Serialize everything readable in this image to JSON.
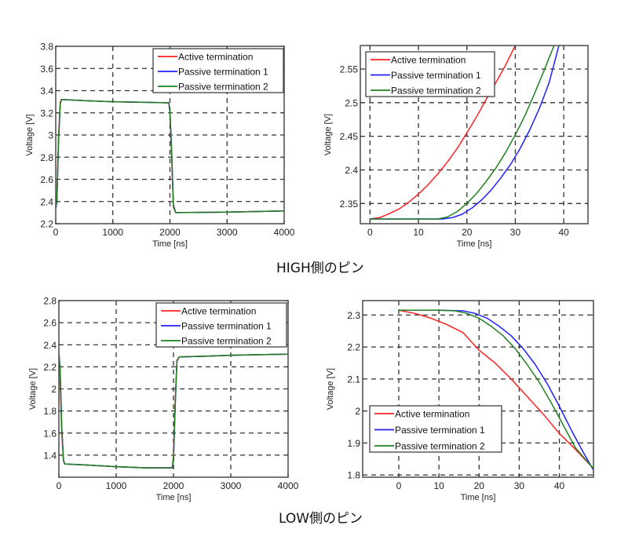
{
  "captions": {
    "high": "HIGH側のピン",
    "low": "LOW側のピン"
  },
  "colors": {
    "active": "#ff2020",
    "passive1": "#2020ff",
    "passive2": "#208020",
    "grid": "#333333",
    "frame": "#555555"
  },
  "chart_data": [
    {
      "type": "line",
      "id": "high-full",
      "xlabel": "Time [ns]",
      "ylabel": "Voltage [V]",
      "xlim": [
        0,
        4000
      ],
      "ylim": [
        2.2,
        3.8
      ],
      "xticks": [
        0,
        1000,
        2000,
        3000,
        4000
      ],
      "xtick_labels": [
        "0",
        "1000",
        "2000",
        "3000",
        "4000"
      ],
      "yticks": [
        2.2,
        2.4,
        2.6,
        2.8,
        3.0,
        3.2,
        3.4,
        3.6,
        3.8
      ],
      "ytick_labels": [
        "2.2",
        "2.4",
        "2.6",
        "2.8",
        "3",
        "3.2",
        "3.4",
        "3.6",
        "3.8"
      ],
      "grid": true,
      "legend_position": "top-right",
      "legend": [
        "Active termination",
        "Passive termination 1",
        "Passive termination 2"
      ],
      "series": [
        {
          "name": "Active termination",
          "color_key": "active",
          "x": [
            0,
            20,
            50,
            80,
            100,
            500,
            1000,
            1500,
            1980,
            2000,
            2030,
            2060,
            2100,
            2500,
            3000,
            3500,
            4000
          ],
          "y": [
            2.33,
            2.45,
            3.0,
            3.3,
            3.32,
            3.31,
            3.3,
            3.295,
            3.29,
            3.2,
            2.8,
            2.35,
            2.3,
            2.302,
            2.305,
            2.31,
            2.315
          ]
        },
        {
          "name": "Passive termination 1",
          "color_key": "passive1",
          "x": [
            0,
            20,
            50,
            80,
            100,
            500,
            1000,
            1500,
            1980,
            2000,
            2030,
            2060,
            2100,
            2500,
            3000,
            3500,
            4000
          ],
          "y": [
            2.33,
            2.4,
            2.95,
            3.28,
            3.32,
            3.31,
            3.3,
            3.295,
            3.29,
            3.22,
            2.85,
            2.37,
            2.3,
            2.302,
            2.305,
            2.31,
            2.315
          ]
        },
        {
          "name": "Passive termination 2",
          "color_key": "passive2",
          "x": [
            0,
            20,
            50,
            80,
            100,
            500,
            1000,
            1500,
            1980,
            2000,
            2030,
            2060,
            2100,
            2500,
            3000,
            3500,
            4000
          ],
          "y": [
            2.33,
            2.41,
            2.96,
            3.29,
            3.32,
            3.31,
            3.3,
            3.295,
            3.29,
            3.21,
            2.83,
            2.36,
            2.3,
            2.302,
            2.305,
            2.31,
            2.315
          ]
        }
      ]
    },
    {
      "type": "line",
      "id": "high-zoom",
      "xlabel": "Time [ns]",
      "ylabel": "Voltage [V]",
      "xlim": [
        -2,
        45
      ],
      "ylim": [
        2.32,
        2.585
      ],
      "xticks": [
        0,
        10,
        20,
        30,
        40
      ],
      "xtick_labels": [
        "0",
        "10",
        "20",
        "30",
        "40"
      ],
      "yticks": [
        2.35,
        2.4,
        2.45,
        2.5,
        2.55
      ],
      "ytick_labels": [
        "2.35",
        "2.4",
        "2.45",
        "2.5",
        "2.55"
      ],
      "grid": true,
      "legend_position": "top-left",
      "legend": [
        "Active termination",
        "Passive termination 1",
        "Passive termination 2"
      ],
      "series": [
        {
          "name": "Active termination",
          "color_key": "active",
          "x": [
            0,
            2,
            4,
            6,
            8,
            10,
            12,
            14,
            16,
            18,
            20,
            22,
            24,
            26,
            28,
            30
          ],
          "y": [
            2.327,
            2.329,
            2.335,
            2.342,
            2.352,
            2.364,
            2.378,
            2.394,
            2.412,
            2.432,
            2.455,
            2.479,
            2.505,
            2.53,
            2.556,
            2.585
          ]
        },
        {
          "name": "Passive termination 1",
          "color_key": "passive1",
          "x": [
            0,
            10,
            15,
            17,
            19,
            21,
            23,
            25,
            27,
            29,
            31,
            33,
            35,
            37,
            39
          ],
          "y": [
            2.327,
            2.327,
            2.327,
            2.329,
            2.334,
            2.343,
            2.355,
            2.37,
            2.388,
            2.408,
            2.432,
            2.46,
            2.492,
            2.53,
            2.585
          ]
        },
        {
          "name": "Passive termination 2",
          "color_key": "passive2",
          "x": [
            0,
            10,
            14,
            16,
            18,
            20,
            22,
            24,
            26,
            28,
            30,
            32,
            34,
            36,
            38
          ],
          "y": [
            2.327,
            2.327,
            2.327,
            2.33,
            2.338,
            2.35,
            2.365,
            2.383,
            2.403,
            2.426,
            2.452,
            2.481,
            2.514,
            2.549,
            2.585
          ]
        }
      ]
    },
    {
      "type": "line",
      "id": "low-full",
      "xlabel": "Time [ns]",
      "ylabel": "Voltage [V]",
      "xlim": [
        0,
        4000
      ],
      "ylim": [
        1.2,
        2.8
      ],
      "xticks": [
        0,
        1000,
        2000,
        3000,
        4000
      ],
      "xtick_labels": [
        "0",
        "1000",
        "2000",
        "3000",
        "4000"
      ],
      "yticks": [
        1.4,
        1.6,
        1.8,
        2.0,
        2.2,
        2.4,
        2.6,
        2.8
      ],
      "ytick_labels": [
        "1.4",
        "1.6",
        "1.8",
        "2",
        "2.2",
        "2.4",
        "2.6",
        "2.8"
      ],
      "grid": true,
      "legend_position": "top-right",
      "legend": [
        "Active termination",
        "Passive termination 1",
        "Passive termination 2"
      ],
      "series": [
        {
          "name": "Active termination",
          "color_key": "active",
          "x": [
            0,
            20,
            50,
            80,
            100,
            500,
            1000,
            1500,
            1980,
            2000,
            2030,
            2060,
            2100,
            2500,
            3000,
            3500,
            4000
          ],
          "y": [
            2.32,
            2.1,
            1.6,
            1.35,
            1.32,
            1.31,
            1.295,
            1.285,
            1.285,
            1.4,
            1.9,
            2.26,
            2.29,
            2.295,
            2.305,
            2.31,
            2.315
          ]
        },
        {
          "name": "Passive termination 1",
          "color_key": "passive1",
          "x": [
            0,
            20,
            50,
            80,
            100,
            500,
            1000,
            1500,
            1980,
            2000,
            2030,
            2060,
            2100,
            2500,
            3000,
            3500,
            4000
          ],
          "y": [
            2.32,
            2.2,
            1.65,
            1.36,
            1.32,
            1.31,
            1.295,
            1.285,
            1.285,
            1.35,
            1.85,
            2.25,
            2.29,
            2.295,
            2.305,
            2.31,
            2.315
          ]
        },
        {
          "name": "Passive termination 2",
          "color_key": "passive2",
          "x": [
            0,
            20,
            50,
            80,
            100,
            500,
            1000,
            1500,
            1980,
            2000,
            2030,
            2060,
            2100,
            2500,
            3000,
            3500,
            4000
          ],
          "y": [
            2.32,
            2.18,
            1.64,
            1.36,
            1.32,
            1.31,
            1.295,
            1.285,
            1.285,
            1.36,
            1.86,
            2.255,
            2.29,
            2.295,
            2.305,
            2.31,
            2.315
          ]
        }
      ]
    },
    {
      "type": "line",
      "id": "low-zoom",
      "xlabel": "Time [ns]",
      "ylabel": "Voltage [V]",
      "xlim": [
        -9,
        48.5
      ],
      "ylim": [
        1.793,
        2.345
      ],
      "xticks": [
        0,
        10,
        20,
        30,
        40
      ],
      "xtick_labels": [
        "0",
        "10",
        "20",
        "30",
        "40"
      ],
      "yticks": [
        1.8,
        1.9,
        2.0,
        2.1,
        2.2,
        2.3
      ],
      "ytick_labels": [
        "1.8",
        "1.9",
        "2",
        "2.1",
        "2.2",
        "2.3"
      ],
      "grid": true,
      "legend_position": "bottom-left",
      "legend": [
        "Active termination",
        "Passive termination 1",
        "Passive termination 2"
      ],
      "series": [
        {
          "name": "Active termination",
          "color_key": "active",
          "x": [
            0,
            4,
            8,
            12,
            16,
            20,
            24,
            28,
            32,
            36,
            40,
            44,
            48.5
          ],
          "y": [
            2.315,
            2.305,
            2.29,
            2.27,
            2.245,
            2.19,
            2.15,
            2.1,
            2.045,
            1.99,
            1.93,
            1.88,
            1.82
          ]
        },
        {
          "name": "Passive termination 1",
          "color_key": "passive1",
          "x": [
            0,
            10,
            16,
            19,
            22,
            25,
            28,
            31,
            34,
            37,
            40,
            43,
            46,
            48.5
          ],
          "y": [
            2.315,
            2.315,
            2.313,
            2.305,
            2.29,
            2.265,
            2.235,
            2.195,
            2.145,
            2.085,
            2.015,
            1.94,
            1.87,
            1.815
          ]
        },
        {
          "name": "Passive termination 2",
          "color_key": "passive2",
          "x": [
            0,
            10,
            14,
            17,
            20,
            23,
            26,
            29,
            32,
            35,
            38,
            41,
            44,
            48.5
          ],
          "y": [
            2.315,
            2.315,
            2.313,
            2.305,
            2.29,
            2.265,
            2.235,
            2.195,
            2.145,
            2.09,
            2.025,
            1.955,
            1.885,
            1.82
          ]
        }
      ]
    }
  ]
}
